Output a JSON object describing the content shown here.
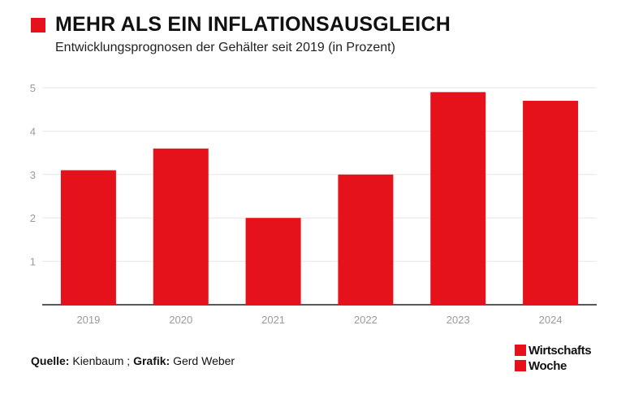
{
  "header": {
    "title": "MEHR ALS EIN INFLATIONSAUSGLEICH",
    "subtitle": "Entwicklungsprognosen der Gehälter seit 2019 (in Prozent)"
  },
  "footer": {
    "source_label": "Quelle:",
    "source_value": "Kienbaum ;",
    "graphic_label": "Grafik:",
    "graphic_value": "Gerd Weber"
  },
  "logo": {
    "line1": "Wirtschafts",
    "line2": "Woche"
  },
  "colors": {
    "accent": "#e5121c",
    "grid": "#e6e6e6",
    "axis": "#222222",
    "tick_text": "#9a9a9a"
  },
  "chart_data": {
    "type": "bar",
    "categories": [
      "2019",
      "2020",
      "2021",
      "2022",
      "2023",
      "2024"
    ],
    "values": [
      3.1,
      3.6,
      2.0,
      3.0,
      4.9,
      4.7
    ],
    "title": "MEHR ALS EIN INFLATIONSAUSGLEICH",
    "subtitle": "Entwicklungsprognosen der Gehälter seit 2019 (in Prozent)",
    "ylim": [
      0,
      5
    ],
    "yticks": [
      "1",
      "2",
      "3",
      "4",
      "5"
    ],
    "grid": true
  }
}
